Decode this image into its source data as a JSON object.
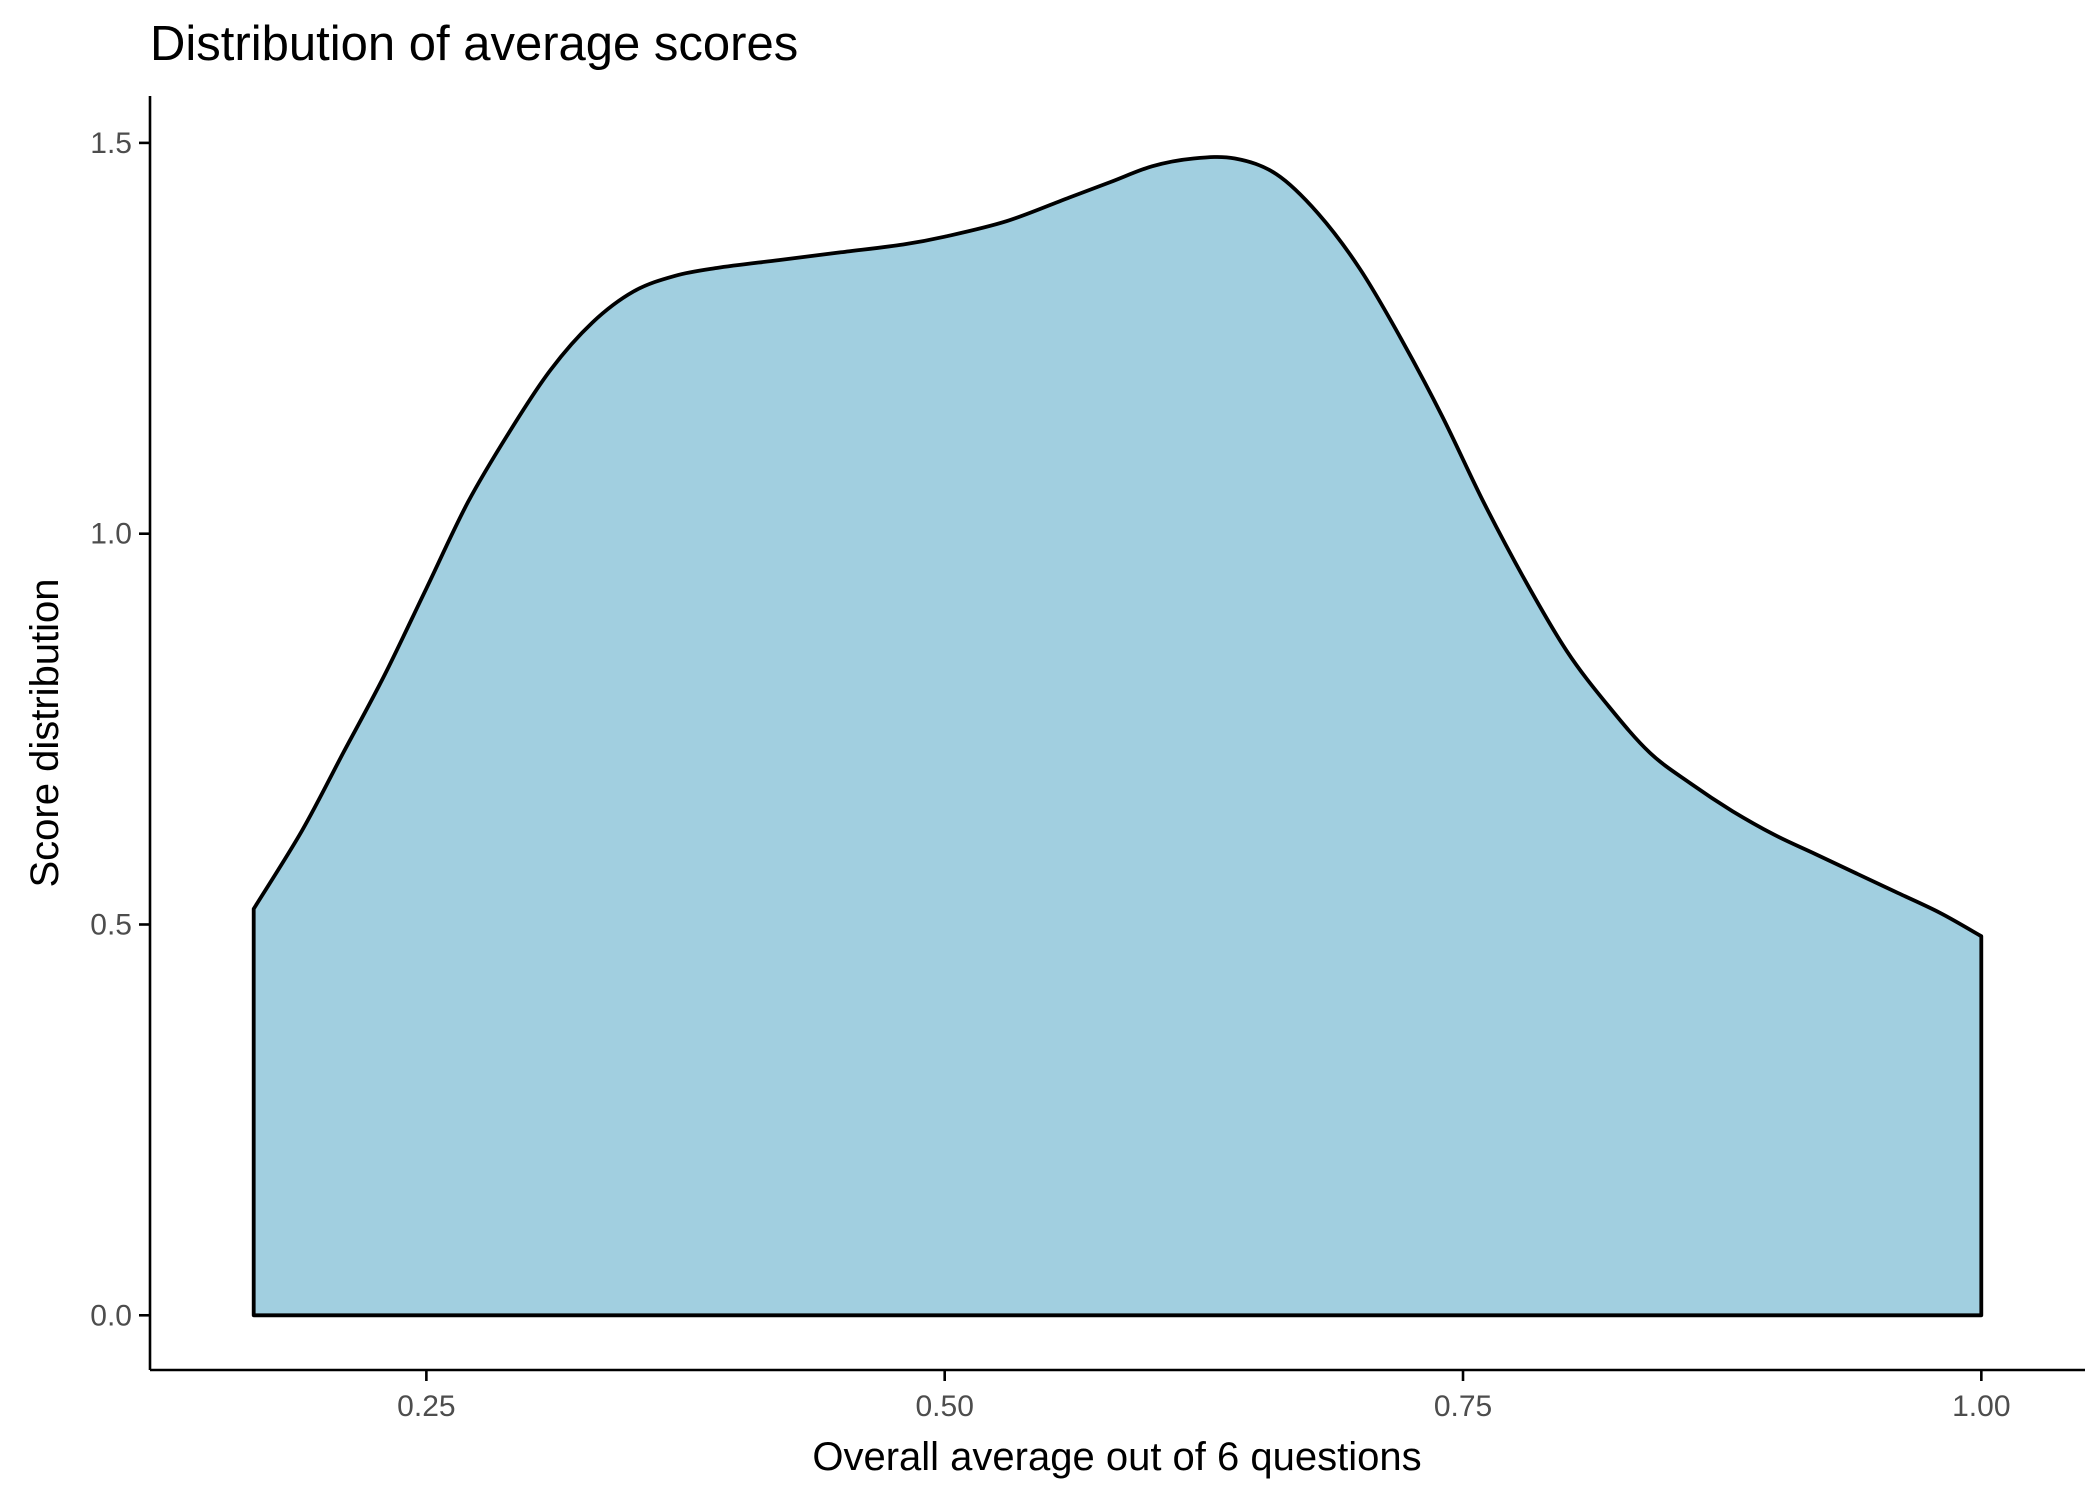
{
  "chart_data": {
    "type": "area",
    "title": "Distribution of average scores",
    "xlabel": "Overall average out of 6 questions",
    "ylabel": "Score distribution",
    "xlim": [
      0.1167,
      1.05
    ],
    "ylim": [
      -0.07,
      1.56
    ],
    "x_ticks": [
      0.25,
      0.5,
      0.75,
      1.0
    ],
    "x_tick_labels": [
      "0.25",
      "0.50",
      "0.75",
      "1.00"
    ],
    "y_ticks": [
      0.0,
      0.5,
      1.0,
      1.5
    ],
    "y_tick_labels": [
      "0.0",
      "0.5",
      "1.0",
      "1.5"
    ],
    "grid": false,
    "legend": "none",
    "fill_color": "#a1cfe0",
    "line_color": "#000000",
    "series": [
      {
        "x": [
          0.1667,
          0.19,
          0.21,
          0.23,
          0.25,
          0.27,
          0.29,
          0.31,
          0.33,
          0.35,
          0.37,
          0.39,
          0.42,
          0.45,
          0.48,
          0.5,
          0.53,
          0.56,
          0.58,
          0.6,
          0.62,
          0.64,
          0.66,
          0.68,
          0.7,
          0.72,
          0.74,
          0.76,
          0.78,
          0.8,
          0.82,
          0.84,
          0.86,
          0.88,
          0.9,
          0.92,
          0.94,
          0.96,
          0.98,
          1.0
        ],
        "y": [
          0.52,
          0.62,
          0.72,
          0.82,
          0.93,
          1.04,
          1.13,
          1.21,
          1.27,
          1.31,
          1.33,
          1.34,
          1.35,
          1.36,
          1.37,
          1.38,
          1.4,
          1.43,
          1.45,
          1.47,
          1.48,
          1.48,
          1.46,
          1.41,
          1.34,
          1.25,
          1.15,
          1.04,
          0.94,
          0.85,
          0.78,
          0.72,
          0.68,
          0.645,
          0.615,
          0.59,
          0.565,
          0.54,
          0.515,
          0.485
        ]
      }
    ]
  }
}
